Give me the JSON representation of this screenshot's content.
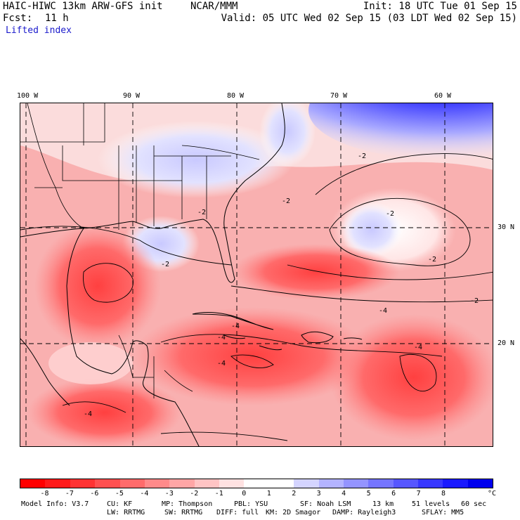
{
  "header": {
    "title": "HAIC-HIWC 13km ARW-GFS init",
    "agency": "NCAR/MMM",
    "init": "Init: 18 UTC Tue 01 Sep 15",
    "fcst_label": "Fcst:",
    "fcst_value": "11 h",
    "valid": "Valid: 05 UTC Wed 02 Sep 15 (03 LDT Wed 02 Sep 15)",
    "field": "Lifted index"
  },
  "axes": {
    "lon_labels": [
      "100 W",
      "90 W",
      "80 W",
      "70 W",
      "60 W"
    ],
    "lat_labels": [
      "30 N",
      "20 N"
    ]
  },
  "contour_labels": [
    "-2",
    "-2",
    "-2",
    "-2",
    "-2",
    "-2",
    "-2",
    "-4",
    "-4",
    "-4",
    "-4",
    "-4",
    "-4"
  ],
  "colorbar": {
    "colors": [
      "#ff0000",
      "#ff1a1a",
      "#ff3333",
      "#ff5050",
      "#ff6b6b",
      "#ff8a8a",
      "#ffa6a6",
      "#ffc4c4",
      "#ffe2e2",
      "#ffffff",
      "#ffffff",
      "#d4d4ff",
      "#b3b3ff",
      "#9494ff",
      "#7575ff",
      "#5757ff",
      "#3838ff",
      "#1a1aff",
      "#0000ee"
    ],
    "labels": [
      "-8",
      "-7",
      "-6",
      "-5",
      "-4",
      "-3",
      "-2",
      "-1",
      "0",
      "1",
      "2",
      "3",
      "4",
      "5",
      "6",
      "7",
      "8"
    ],
    "unit": "°C"
  },
  "footer": {
    "line1": [
      "Model Info: V3.7",
      "CU: KF",
      "MP: Thompson",
      "PBL: YSU",
      "SF: Noah LSM",
      "13 km",
      "51 levels",
      "60 sec"
    ],
    "line2": [
      "LW: RRTMG",
      "SW: RRTMG",
      "DIFF: full",
      "KM: 2D Smagor",
      "DAMP: Rayleigh3",
      "SFLAY: MM5"
    ]
  }
}
